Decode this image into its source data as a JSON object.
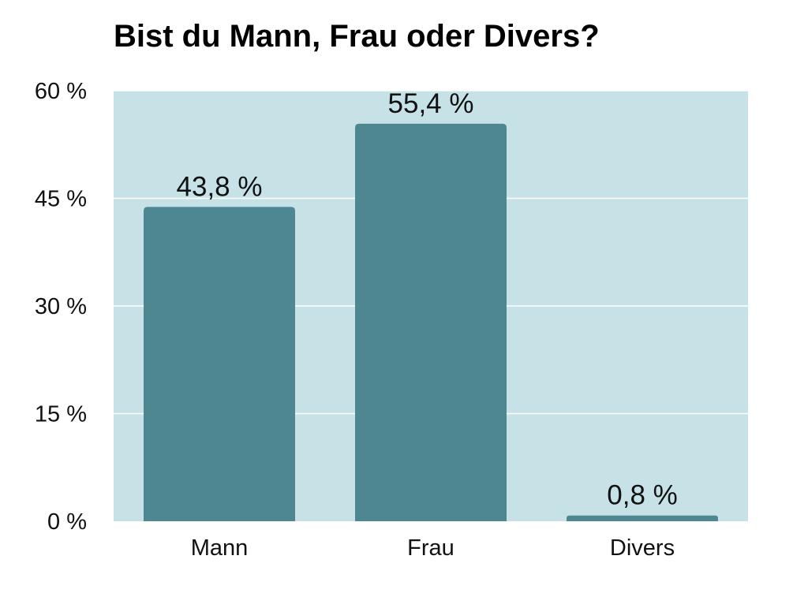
{
  "chart_data": {
    "type": "bar",
    "title": "Bist du Mann, Frau oder Divers?",
    "categories": [
      "Mann",
      "Frau",
      "Divers"
    ],
    "values": [
      43.8,
      55.4,
      0.8
    ],
    "value_labels": [
      "43,8 %",
      "55,4 %",
      "0,8 %"
    ],
    "ylim": [
      0,
      60
    ],
    "yticks": [
      0,
      15,
      30,
      45,
      60
    ],
    "ytick_labels": [
      "0 %",
      "15 %",
      "30 %",
      "45 %",
      "60 %"
    ],
    "xlabel": "",
    "ylabel": "",
    "grid": true,
    "legend": "none",
    "colors": {
      "bar": "#4e8792",
      "plot_background": "#c7e2e7",
      "gridline": "#ffffff"
    }
  }
}
